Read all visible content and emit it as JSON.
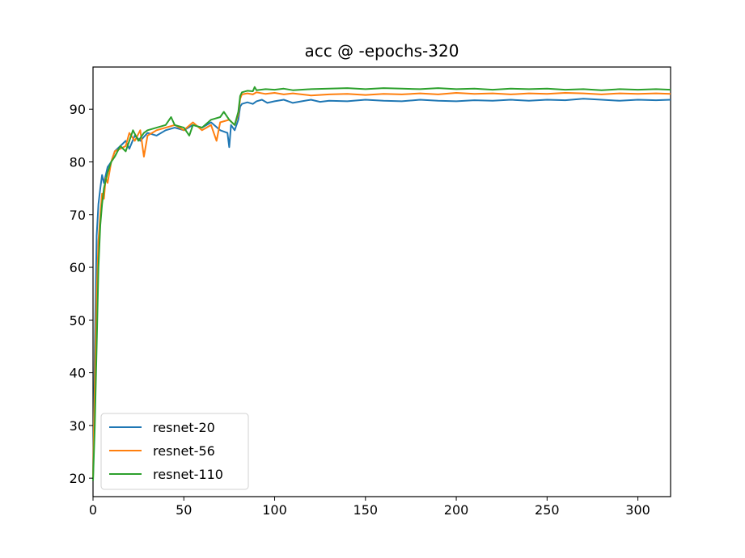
{
  "chart_data": {
    "type": "line",
    "title": "acc @ -epochs-320",
    "xlabel": "",
    "ylabel": "",
    "xlim": [
      0,
      318
    ],
    "ylim": [
      16.5,
      98
    ],
    "x_ticks": [
      0,
      50,
      100,
      150,
      200,
      250,
      300
    ],
    "y_ticks": [
      20,
      30,
      40,
      50,
      60,
      70,
      80,
      90
    ],
    "grid": false,
    "legend_position": "bottom-left",
    "series": [
      {
        "name": "resnet-20",
        "color": "#1f77b4",
        "points": [
          [
            0,
            20
          ],
          [
            1,
            45
          ],
          [
            2,
            66
          ],
          [
            3,
            72
          ],
          [
            4,
            75
          ],
          [
            5,
            77.5
          ],
          [
            6,
            76
          ],
          [
            8,
            79
          ],
          [
            10,
            80
          ],
          [
            12,
            82
          ],
          [
            15,
            83
          ],
          [
            18,
            84
          ],
          [
            20,
            82.5
          ],
          [
            23,
            85
          ],
          [
            26,
            84
          ],
          [
            30,
            85.5
          ],
          [
            35,
            85
          ],
          [
            40,
            86
          ],
          [
            45,
            86.5
          ],
          [
            50,
            86
          ],
          [
            55,
            87
          ],
          [
            60,
            86.5
          ],
          [
            65,
            87.5
          ],
          [
            70,
            86
          ],
          [
            74,
            85.5
          ],
          [
            75,
            82.8
          ],
          [
            76,
            87
          ],
          [
            78,
            86
          ],
          [
            80,
            88
          ],
          [
            81,
            90.5
          ],
          [
            82,
            91
          ],
          [
            85,
            91.3
          ],
          [
            88,
            91
          ],
          [
            90,
            91.5
          ],
          [
            93,
            91.8
          ],
          [
            96,
            91.2
          ],
          [
            100,
            91.5
          ],
          [
            105,
            91.8
          ],
          [
            110,
            91.2
          ],
          [
            115,
            91.5
          ],
          [
            120,
            91.8
          ],
          [
            125,
            91.4
          ],
          [
            130,
            91.6
          ],
          [
            140,
            91.5
          ],
          [
            150,
            91.8
          ],
          [
            160,
            91.6
          ],
          [
            170,
            91.5
          ],
          [
            180,
            91.8
          ],
          [
            190,
            91.6
          ],
          [
            200,
            91.5
          ],
          [
            210,
            91.7
          ],
          [
            220,
            91.6
          ],
          [
            230,
            91.8
          ],
          [
            240,
            91.6
          ],
          [
            250,
            91.8
          ],
          [
            260,
            91.7
          ],
          [
            270,
            92
          ],
          [
            280,
            91.8
          ],
          [
            290,
            91.6
          ],
          [
            300,
            91.8
          ],
          [
            310,
            91.7
          ],
          [
            318,
            91.8
          ]
        ]
      },
      {
        "name": "resnet-56",
        "color": "#ff7f0e",
        "points": [
          [
            0,
            20
          ],
          [
            1,
            38
          ],
          [
            2,
            55
          ],
          [
            3,
            65
          ],
          [
            4,
            70
          ],
          [
            5,
            74
          ],
          [
            6,
            73
          ],
          [
            7,
            77
          ],
          [
            8,
            76
          ],
          [
            10,
            80
          ],
          [
            12,
            82
          ],
          [
            15,
            82.5
          ],
          [
            18,
            83
          ],
          [
            20,
            85.5
          ],
          [
            23,
            84
          ],
          [
            26,
            86
          ],
          [
            28,
            81
          ],
          [
            30,
            85
          ],
          [
            35,
            86
          ],
          [
            40,
            86.5
          ],
          [
            45,
            87
          ],
          [
            50,
            86
          ],
          [
            55,
            87.5
          ],
          [
            60,
            86
          ],
          [
            65,
            87
          ],
          [
            68,
            84
          ],
          [
            70,
            87.5
          ],
          [
            75,
            88
          ],
          [
            78,
            87
          ],
          [
            80,
            89
          ],
          [
            81,
            92
          ],
          [
            82,
            92.8
          ],
          [
            85,
            93
          ],
          [
            88,
            92.8
          ],
          [
            90,
            93.2
          ],
          [
            95,
            92.9
          ],
          [
            100,
            93.1
          ],
          [
            105,
            92.8
          ],
          [
            110,
            93
          ],
          [
            120,
            92.6
          ],
          [
            130,
            92.8
          ],
          [
            140,
            92.9
          ],
          [
            150,
            92.7
          ],
          [
            160,
            92.9
          ],
          [
            170,
            92.8
          ],
          [
            180,
            93
          ],
          [
            190,
            92.8
          ],
          [
            200,
            93.1
          ],
          [
            210,
            92.9
          ],
          [
            220,
            93
          ],
          [
            230,
            92.8
          ],
          [
            240,
            93
          ],
          [
            250,
            92.9
          ],
          [
            260,
            93.1
          ],
          [
            270,
            93
          ],
          [
            280,
            92.8
          ],
          [
            290,
            93
          ],
          [
            300,
            92.9
          ],
          [
            310,
            93
          ],
          [
            318,
            92.9
          ]
        ]
      },
      {
        "name": "resnet-110",
        "color": "#2ca02c",
        "points": [
          [
            0,
            19.5
          ],
          [
            1,
            30
          ],
          [
            2,
            45
          ],
          [
            3,
            60
          ],
          [
            4,
            68
          ],
          [
            5,
            72
          ],
          [
            6,
            75
          ],
          [
            8,
            78
          ],
          [
            10,
            80
          ],
          [
            12,
            81
          ],
          [
            15,
            83
          ],
          [
            18,
            82
          ],
          [
            20,
            84
          ],
          [
            22,
            86
          ],
          [
            25,
            84
          ],
          [
            28,
            85.5
          ],
          [
            30,
            86
          ],
          [
            35,
            86.5
          ],
          [
            40,
            87
          ],
          [
            43,
            88.5
          ],
          [
            45,
            87
          ],
          [
            50,
            86.5
          ],
          [
            53,
            85
          ],
          [
            55,
            87
          ],
          [
            60,
            86.5
          ],
          [
            65,
            88
          ],
          [
            70,
            88.5
          ],
          [
            72,
            89.5
          ],
          [
            75,
            88
          ],
          [
            78,
            87
          ],
          [
            80,
            89.5
          ],
          [
            81,
            92.5
          ],
          [
            82,
            93.2
          ],
          [
            85,
            93.5
          ],
          [
            88,
            93.4
          ],
          [
            89,
            94.2
          ],
          [
            90,
            93.6
          ],
          [
            95,
            93.8
          ],
          [
            100,
            93.7
          ],
          [
            105,
            93.9
          ],
          [
            110,
            93.6
          ],
          [
            120,
            93.8
          ],
          [
            130,
            93.9
          ],
          [
            140,
            94
          ],
          [
            150,
            93.8
          ],
          [
            160,
            94
          ],
          [
            170,
            93.9
          ],
          [
            180,
            93.8
          ],
          [
            190,
            94
          ],
          [
            200,
            93.8
          ],
          [
            210,
            93.9
          ],
          [
            220,
            93.7
          ],
          [
            230,
            93.9
          ],
          [
            240,
            93.8
          ],
          [
            250,
            93.9
          ],
          [
            260,
            93.7
          ],
          [
            270,
            93.8
          ],
          [
            280,
            93.6
          ],
          [
            290,
            93.8
          ],
          [
            300,
            93.7
          ],
          [
            310,
            93.8
          ],
          [
            318,
            93.7
          ]
        ]
      }
    ]
  }
}
